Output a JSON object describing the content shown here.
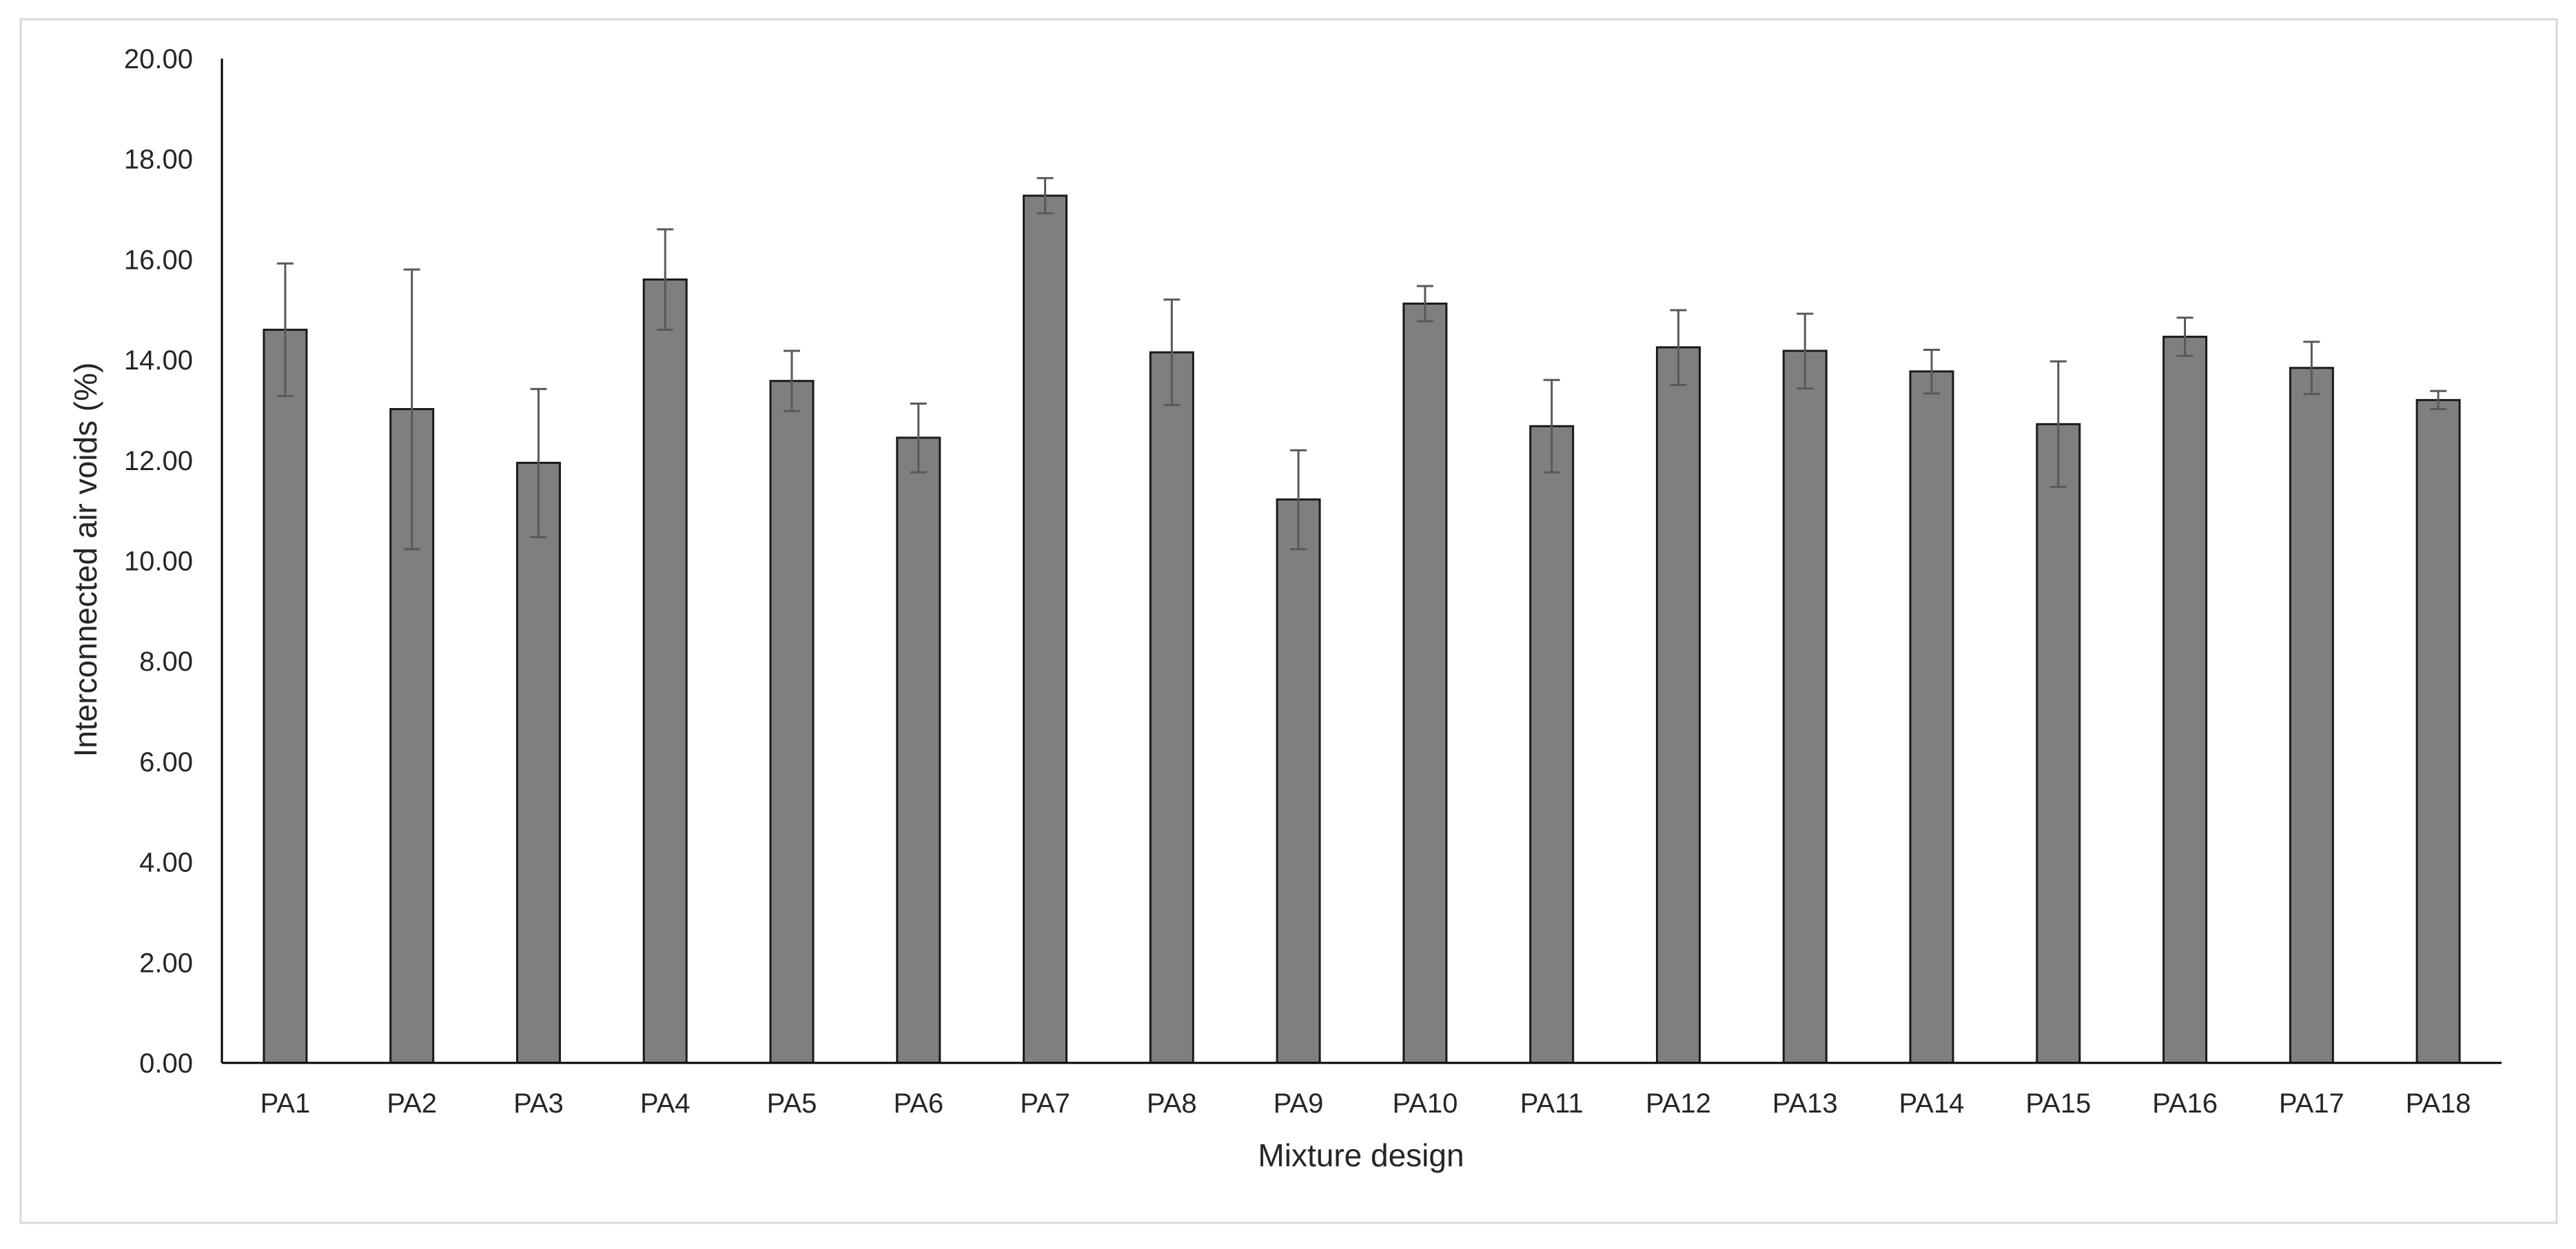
{
  "chart_data": {
    "type": "bar",
    "xlabel": "Mixture design",
    "ylabel": "Interconnected  air voids (%)",
    "ylim": [
      0,
      20
    ],
    "yticks": [
      "0.00",
      "2.00",
      "4.00",
      "6.00",
      "8.00",
      "10.00",
      "12.00",
      "14.00",
      "16.00",
      "18.00",
      "20.00"
    ],
    "grid": false,
    "categories": [
      "PA1",
      "PA2",
      "PA3",
      "PA4",
      "PA5",
      "PA6",
      "PA7",
      "PA8",
      "PA9",
      "PA10",
      "PA11",
      "PA12",
      "PA13",
      "PA14",
      "PA15",
      "PA16",
      "PA17",
      "PA18"
    ],
    "values": [
      14.6,
      13.02,
      11.95,
      15.6,
      13.58,
      12.45,
      17.27,
      14.15,
      11.22,
      15.12,
      12.68,
      14.25,
      14.18,
      13.77,
      12.72,
      14.46,
      13.84,
      13.2
    ],
    "error_upper": [
      15.92,
      15.8,
      13.42,
      16.6,
      14.18,
      13.13,
      17.62,
      15.2,
      12.2,
      15.47,
      13.6,
      14.99,
      14.92,
      14.2,
      13.97,
      14.84,
      14.36,
      13.38
    ],
    "error_lower": [
      13.28,
      10.23,
      10.47,
      14.6,
      12.98,
      11.76,
      16.92,
      13.1,
      10.23,
      14.77,
      11.76,
      13.5,
      13.43,
      13.33,
      11.47,
      14.08,
      13.32,
      13.02
    ],
    "colors": {
      "bar_fill": "#7f7f7f",
      "bar_stroke": "#1a1a1a",
      "error_bar": "#595959",
      "axis": "#000000",
      "frame": "#d9d9d9"
    }
  }
}
